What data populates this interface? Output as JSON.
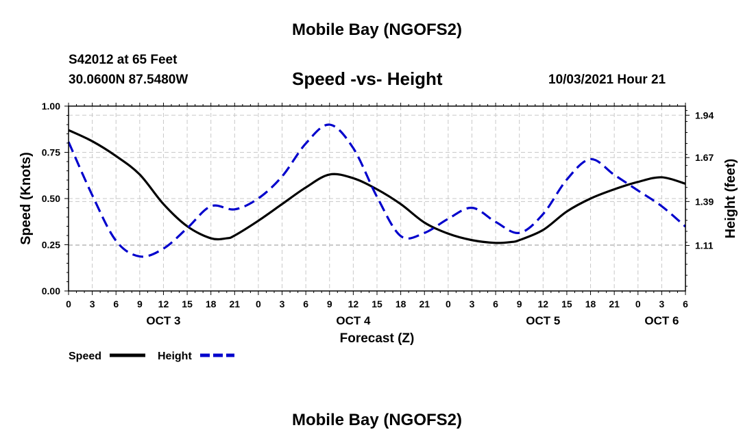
{
  "page": {
    "title_top": "Mobile Bay (NGOFS2)",
    "title_bottom": "Mobile Bay (NGOFS2)",
    "station": "S42012 at 65 Feet",
    "coords": "30.0600N  87.5480W",
    "subtitle": "Speed -vs- Height",
    "datetime": "10/03/2021 Hour 21"
  },
  "chart_data": {
    "type": "line",
    "title": "Speed -vs- Height",
    "xlabel": "Forecast (Z)",
    "ylabel": "Speed (Knots)",
    "y2label": "Height (feet)",
    "xlim": [
      0,
      78
    ],
    "ylim": [
      0,
      1
    ],
    "y2lim": [
      0.82,
      1.998
    ],
    "grid": true,
    "x_ticks": [
      0,
      3,
      6,
      9,
      12,
      15,
      18,
      21,
      24,
      27,
      30,
      33,
      36,
      39,
      42,
      45,
      48,
      51,
      54,
      57,
      60,
      63,
      66,
      69,
      72,
      75,
      78
    ],
    "x_tick_labels": [
      "0",
      "3",
      "6",
      "9",
      "12",
      "15",
      "18",
      "21",
      "0",
      "3",
      "6",
      "9",
      "12",
      "15",
      "18",
      "21",
      "0",
      "3",
      "6",
      "9",
      "12",
      "15",
      "18",
      "21",
      "0",
      "3",
      "6"
    ],
    "y_ticks": [
      0,
      0.25,
      0.5,
      0.75,
      1.0
    ],
    "y_tick_labels": [
      "0.00",
      "0.25",
      "0.50",
      "0.75",
      "1.00"
    ],
    "y2_ticks": [
      1.11,
      1.39,
      1.67,
      1.94
    ],
    "y2_tick_labels": [
      "1.11",
      "1.39",
      "1.67",
      "1.94"
    ],
    "day_labels": [
      {
        "x": 12,
        "text": "OCT 3"
      },
      {
        "x": 36,
        "text": "OCT 4"
      },
      {
        "x": 60,
        "text": "OCT 5"
      },
      {
        "x": 75,
        "text": "OCT 6"
      }
    ],
    "legend": [
      {
        "name": "Speed",
        "color": "#000000",
        "dash": "solid"
      },
      {
        "name": "Height",
        "color": "#0000cc",
        "dash": "dashed"
      }
    ],
    "series": [
      {
        "name": "Speed",
        "axis": "left",
        "color": "#000000",
        "x": [
          0,
          3,
          6,
          9,
          12,
          15,
          18,
          20,
          21,
          24,
          27,
          30,
          33,
          36,
          39,
          42,
          45,
          48,
          51,
          54,
          56,
          57,
          60,
          63,
          66,
          69,
          72,
          75,
          78
        ],
        "values": [
          0.87,
          0.81,
          0.73,
          0.63,
          0.47,
          0.35,
          0.285,
          0.285,
          0.3,
          0.38,
          0.47,
          0.56,
          0.63,
          0.61,
          0.55,
          0.47,
          0.37,
          0.31,
          0.275,
          0.26,
          0.265,
          0.275,
          0.33,
          0.43,
          0.5,
          0.55,
          0.59,
          0.615,
          0.58
        ]
      },
      {
        "name": "Height",
        "axis": "right",
        "color": "#0000cc",
        "x": [
          0,
          3,
          6,
          9,
          12,
          15,
          18,
          21,
          24,
          27,
          30,
          33,
          36,
          39,
          42,
          45,
          48,
          51,
          54,
          57,
          60,
          63,
          66,
          69,
          72,
          75,
          78
        ],
        "values": [
          1.77,
          1.43,
          1.14,
          1.04,
          1.09,
          1.22,
          1.36,
          1.34,
          1.41,
          1.55,
          1.76,
          1.88,
          1.73,
          1.42,
          1.17,
          1.19,
          1.28,
          1.35,
          1.26,
          1.19,
          1.31,
          1.53,
          1.66,
          1.56,
          1.46,
          1.36,
          1.23
        ]
      }
    ]
  }
}
